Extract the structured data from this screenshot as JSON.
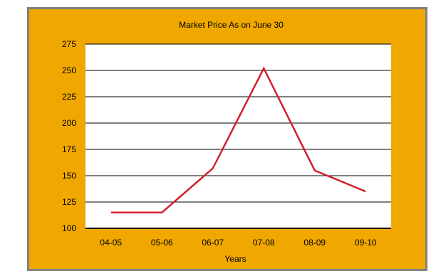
{
  "chart_data": {
    "type": "line",
    "title": "Market Price As on June 30",
    "xlabel": "Years",
    "ylabel": "",
    "categories": [
      "04-05",
      "05-06",
      "06-07",
      "07-08",
      "08-09",
      "09-10"
    ],
    "series": [
      {
        "values": [
          115,
          115,
          157,
          252,
          155,
          135
        ]
      }
    ],
    "ylim": [
      100,
      275
    ],
    "yticks": [
      100,
      125,
      150,
      175,
      200,
      225,
      250,
      275
    ],
    "grid": true,
    "legend": "none"
  },
  "colors": {
    "frame_background": "#f0a800",
    "frame_border": "#808080",
    "plot_background": "#ffffff",
    "gridline": "#000000",
    "series_line": "#d0202e"
  }
}
